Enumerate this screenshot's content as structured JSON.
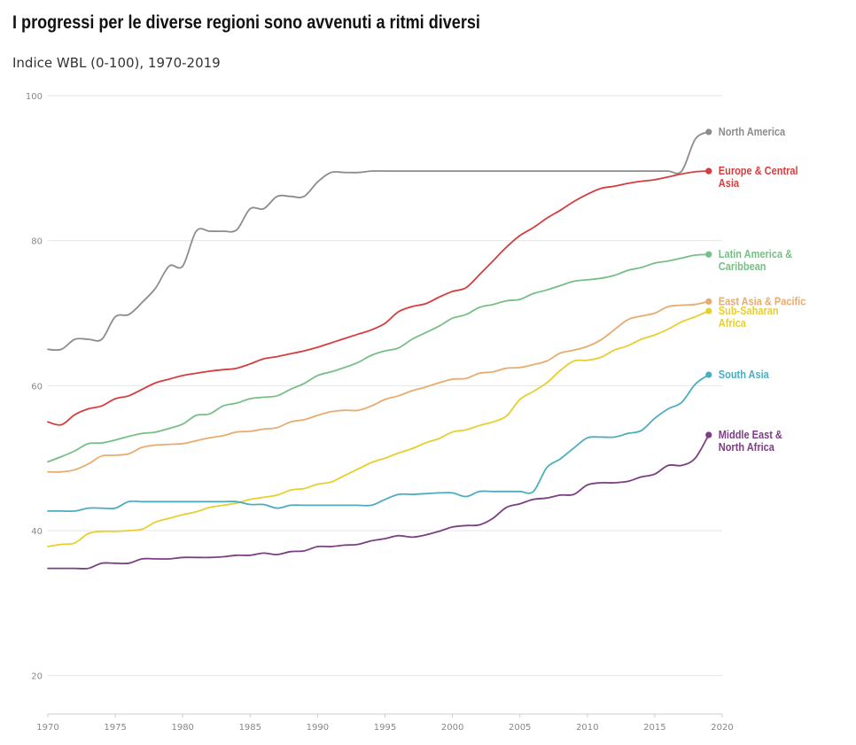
{
  "title": "I progressi per le diverse regioni sono avvenuti a ritmi diversi",
  "subtitle": "Indice WBL (0-100), 1970-2019",
  "chart_data": {
    "type": "line",
    "title": "I progressi per le diverse regioni sono avvenuti a ritmi diversi",
    "subtitle": "Indice WBL (0-100), 1970-2019",
    "xlim": [
      1970,
      2020
    ],
    "ylim": [
      15,
      100
    ],
    "xticks": [
      1970,
      1975,
      1980,
      1985,
      1990,
      1995,
      2000,
      2005,
      2010,
      2015,
      2020
    ],
    "yticks": [
      20,
      40,
      60,
      80,
      100
    ],
    "grid": true,
    "legend": "direct labels at line ends (right)",
    "x": [
      1970,
      1971,
      1972,
      1973,
      1974,
      1975,
      1976,
      1977,
      1978,
      1979,
      1980,
      1981,
      1982,
      1983,
      1984,
      1985,
      1986,
      1987,
      1988,
      1989,
      1990,
      1991,
      1992,
      1993,
      1994,
      1995,
      1996,
      1997,
      1998,
      1999,
      2000,
      2001,
      2002,
      2003,
      2004,
      2005,
      2006,
      2007,
      2008,
      2009,
      2010,
      2011,
      2012,
      2013,
      2014,
      2015,
      2016,
      2017,
      2018,
      2019
    ],
    "series": [
      {
        "name": "North America",
        "label_lines": [
          "North America"
        ],
        "color": "#8c8c8c",
        "values": [
          65,
          65,
          66.4,
          66.4,
          66.4,
          69.5,
          69.8,
          71.5,
          73.5,
          76.5,
          76.5,
          81.3,
          81.3,
          81.3,
          81.5,
          84.4,
          84.4,
          86.1,
          86.1,
          86.1,
          88.1,
          89.4,
          89.4,
          89.4,
          89.6,
          89.6,
          89.6,
          89.6,
          89.6,
          89.6,
          89.6,
          89.6,
          89.6,
          89.6,
          89.6,
          89.6,
          89.6,
          89.6,
          89.6,
          89.6,
          89.6,
          89.6,
          89.6,
          89.6,
          89.6,
          89.6,
          89.6,
          89.6,
          94,
          95
        ]
      },
      {
        "name": "Europe & Central Asia",
        "label_lines": [
          "Europe & Central",
          "Asia"
        ],
        "color": "#d63d3d",
        "values": [
          55,
          54.6,
          56,
          56.8,
          57.2,
          58.2,
          58.6,
          59.5,
          60.4,
          60.9,
          61.4,
          61.7,
          62,
          62.2,
          62.4,
          63,
          63.7,
          64,
          64.4,
          64.8,
          65.3,
          65.9,
          66.5,
          67.1,
          67.7,
          68.6,
          70.2,
          70.9,
          71.3,
          72.2,
          73,
          73.5,
          75.3,
          77.2,
          79.1,
          80.7,
          81.8,
          83.1,
          84.2,
          85.4,
          86.4,
          87.2,
          87.5,
          87.9,
          88.2,
          88.4,
          88.8,
          89.2,
          89.5,
          89.6
        ]
      },
      {
        "name": "Latin America & Caribbean",
        "label_lines": [
          "Latin America &",
          "Caribbean"
        ],
        "color": "#78be87",
        "values": [
          49.5,
          50.2,
          51,
          52,
          52.1,
          52.5,
          53,
          53.4,
          53.6,
          54.1,
          54.7,
          55.9,
          56.1,
          57.2,
          57.6,
          58.2,
          58.4,
          58.6,
          59.5,
          60.3,
          61.4,
          61.9,
          62.5,
          63.2,
          64.2,
          64.8,
          65.2,
          66.4,
          67.3,
          68.2,
          69.3,
          69.8,
          70.8,
          71.2,
          71.7,
          71.9,
          72.7,
          73.2,
          73.8,
          74.4,
          74.6,
          74.8,
          75.2,
          75.9,
          76.3,
          76.9,
          77.2,
          77.6,
          78,
          78.1
        ]
      },
      {
        "name": "East Asia & Pacific",
        "label_lines": [
          "East Asia & Pacific"
        ],
        "color": "#e8ac6e",
        "values": [
          48.1,
          48.1,
          48.4,
          49.2,
          50.3,
          50.4,
          50.6,
          51.5,
          51.8,
          51.9,
          52,
          52.4,
          52.8,
          53.1,
          53.6,
          53.7,
          54,
          54.2,
          55,
          55.3,
          55.9,
          56.4,
          56.6,
          56.6,
          57.2,
          58.1,
          58.6,
          59.3,
          59.8,
          60.4,
          60.9,
          61,
          61.7,
          61.9,
          62.4,
          62.5,
          62.9,
          63.4,
          64.5,
          64.9,
          65.4,
          66.3,
          67.7,
          69.1,
          69.6,
          70,
          70.9,
          71.1,
          71.2,
          71.6
        ]
      },
      {
        "name": "Sub-Saharan Africa",
        "label_lines": [
          "Sub-Saharan",
          "Africa"
        ],
        "color": "#e6cf2e",
        "values": [
          37.8,
          38.1,
          38.3,
          39.6,
          39.9,
          39.9,
          40,
          40.2,
          41.2,
          41.7,
          42.2,
          42.6,
          43.2,
          43.5,
          43.8,
          44.3,
          44.6,
          44.9,
          45.6,
          45.8,
          46.4,
          46.7,
          47.6,
          48.5,
          49.4,
          50,
          50.7,
          51.3,
          52.1,
          52.7,
          53.6,
          53.9,
          54.5,
          55,
          55.8,
          58.1,
          59.2,
          60.4,
          62.1,
          63.4,
          63.5,
          63.9,
          64.9,
          65.5,
          66.4,
          67,
          67.8,
          68.8,
          69.5,
          70.3
        ]
      },
      {
        "name": "South Asia",
        "label_lines": [
          "South Asia"
        ],
        "color": "#4cadbf",
        "values": [
          42.7,
          42.7,
          42.7,
          43.1,
          43.1,
          43.1,
          44,
          44,
          44,
          44,
          44,
          44,
          44,
          44,
          44,
          43.6,
          43.6,
          43.1,
          43.5,
          43.5,
          43.5,
          43.5,
          43.5,
          43.5,
          43.5,
          44.3,
          45,
          45,
          45.1,
          45.2,
          45.2,
          44.7,
          45.4,
          45.4,
          45.4,
          45.4,
          45.4,
          48.7,
          49.9,
          51.4,
          52.8,
          52.9,
          52.9,
          53.4,
          53.8,
          55.5,
          56.8,
          57.7,
          60.2,
          61.5
        ]
      },
      {
        "name": "Middle East & North Africa",
        "label_lines": [
          "Middle East &",
          "North Africa"
        ],
        "color": "#7b3f83",
        "values": [
          34.8,
          34.8,
          34.8,
          34.8,
          35.5,
          35.5,
          35.5,
          36.1,
          36.1,
          36.1,
          36.3,
          36.3,
          36.3,
          36.4,
          36.6,
          36.6,
          36.9,
          36.7,
          37.1,
          37.2,
          37.8,
          37.8,
          38,
          38.1,
          38.6,
          38.9,
          39.3,
          39.1,
          39.4,
          39.9,
          40.5,
          40.7,
          40.8,
          41.7,
          43.2,
          43.7,
          44.3,
          44.5,
          44.9,
          45,
          46.3,
          46.6,
          46.6,
          46.8,
          47.4,
          47.8,
          49,
          49,
          50,
          53.2
        ]
      }
    ]
  }
}
